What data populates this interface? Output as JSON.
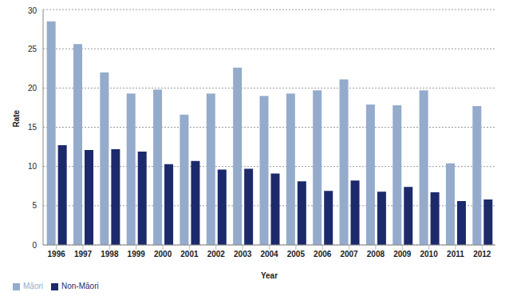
{
  "chart_data": {
    "type": "bar",
    "x_label": "Year",
    "y_label": "Rate",
    "categories": [
      "1996",
      "1997",
      "1998",
      "1999",
      "2000",
      "2001",
      "2002",
      "2003",
      "2004",
      "2005",
      "2006",
      "2007",
      "2008",
      "2009",
      "2010",
      "2011",
      "2012"
    ],
    "series": [
      {
        "name": "Māori",
        "color": "#94abcc",
        "values": [
          28.5,
          25.6,
          22.0,
          19.3,
          19.8,
          16.6,
          19.3,
          22.6,
          19.0,
          19.3,
          19.7,
          21.1,
          17.9,
          17.8,
          19.7,
          10.4,
          17.7
        ]
      },
      {
        "name": "Non-Māori",
        "color": "#1c2a6b",
        "values": [
          12.7,
          12.1,
          12.2,
          11.9,
          10.3,
          10.7,
          9.6,
          9.7,
          9.1,
          8.1,
          6.9,
          8.2,
          6.8,
          7.4,
          6.7,
          5.6,
          5.8
        ]
      }
    ],
    "ylim": [
      0,
      30
    ],
    "yticks": [
      0,
      5,
      10,
      15,
      20,
      25,
      30
    ],
    "grid": true,
    "legend": "bottom-left"
  }
}
